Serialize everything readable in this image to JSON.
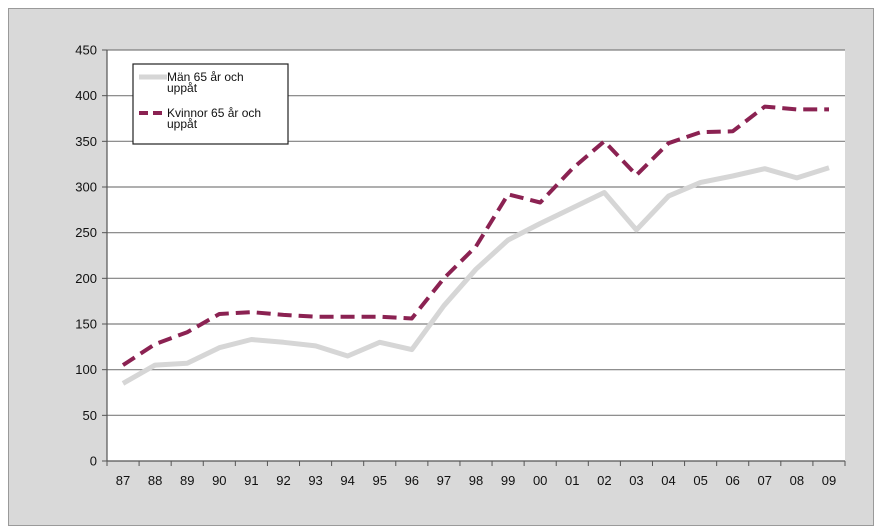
{
  "chart_data": {
    "type": "line",
    "title": "",
    "xlabel": "",
    "ylabel": "",
    "categories": [
      "87",
      "88",
      "89",
      "90",
      "91",
      "92",
      "93",
      "94",
      "95",
      "96",
      "97",
      "98",
      "99",
      "00",
      "01",
      "02",
      "03",
      "04",
      "05",
      "06",
      "07",
      "08",
      "09"
    ],
    "ylim": [
      0,
      450
    ],
    "yticks": [
      0,
      50,
      100,
      150,
      200,
      250,
      300,
      350,
      400,
      450
    ],
    "grid": true,
    "legend_position": "top-left",
    "series": [
      {
        "name_lines": [
          "Män 65 år och",
          "uppåt"
        ],
        "color": "#d6d6d6",
        "style": "solid",
        "values": [
          85,
          105,
          107,
          124,
          133,
          130,
          126,
          115,
          130,
          122,
          170,
          210,
          242,
          260,
          277,
          294,
          253,
          290,
          305,
          312,
          320,
          310,
          321
        ]
      },
      {
        "name_lines": [
          "Kvinnor 65 år och",
          "uppåt"
        ],
        "color": "#8b2252",
        "style": "dashed",
        "values": [
          105,
          128,
          141,
          161,
          163,
          160,
          158,
          158,
          158,
          156,
          200,
          235,
          292,
          283,
          320,
          350,
          313,
          348,
          360,
          361,
          388,
          385,
          385
        ]
      }
    ]
  }
}
